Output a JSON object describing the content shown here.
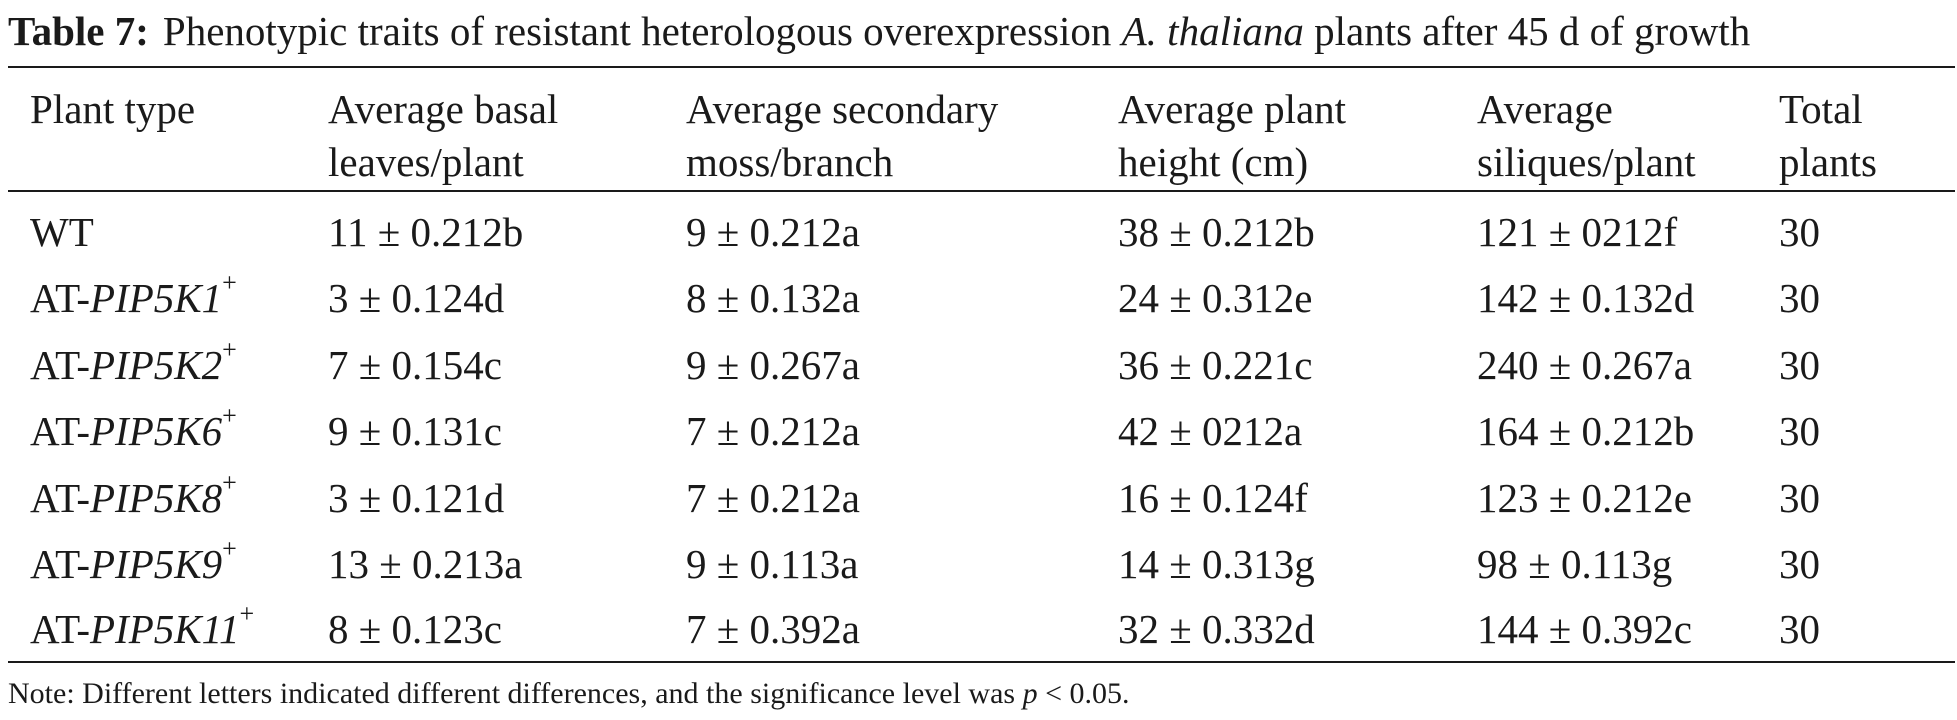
{
  "caption": {
    "label": "Table 7:",
    "text_before": "Phenotypic traits of resistant heterologous overexpression",
    "species": "A. thaliana",
    "text_after": "plants after 45 d of growth"
  },
  "headers": [
    [
      "Plant type"
    ],
    [
      "Average basal",
      "leaves/plant"
    ],
    [
      "Average secondary",
      "moss/branch"
    ],
    [
      "Average plant",
      "height (cm)"
    ],
    [
      "Average",
      "siliques/plant"
    ],
    [
      "Total",
      "plants"
    ]
  ],
  "rows": [
    {
      "prefix": "WT",
      "gene": "",
      "sup": "",
      "basal": "11 ± 0.212b",
      "secondary": "9 ± 0.212a",
      "height": "38 ± 0.212b",
      "siliques": "121 ± 0212f",
      "total": "30"
    },
    {
      "prefix": "AT-",
      "gene": "PIP5K1",
      "sup": "+",
      "basal": "3 ± 0.124d",
      "secondary": "8 ± 0.132a",
      "height": "24 ± 0.312e",
      "siliques": "142 ± 0.132d",
      "total": "30"
    },
    {
      "prefix": "AT-",
      "gene": "PIP5K2",
      "sup": "+",
      "basal": "7 ± 0.154c",
      "secondary": "9 ± 0.267a",
      "height": "36 ± 0.221c",
      "siliques": "240 ± 0.267a",
      "total": "30"
    },
    {
      "prefix": "AT-",
      "gene": "PIP5K6",
      "sup": "+",
      "basal": "9 ± 0.131c",
      "secondary": "7 ± 0.212a",
      "height": "42 ± 0212a",
      "siliques": "164 ± 0.212b",
      "total": "30"
    },
    {
      "prefix": "AT-",
      "gene": "PIP5K8",
      "sup": "+",
      "basal": "3 ± 0.121d",
      "secondary": "7 ± 0.212a",
      "height": "16 ± 0.124f",
      "siliques": "123 ± 0.212e",
      "total": "30"
    },
    {
      "prefix": "AT-",
      "gene": "PIP5K9",
      "sup": "+",
      "basal": "13 ± 0.213a",
      "secondary": "9 ± 0.113a",
      "height": "14 ± 0.313g",
      "siliques": "98 ± 0.113g",
      "total": "30"
    },
    {
      "prefix": "AT-",
      "gene": "PIP5K11",
      "sup": "+",
      "basal": "8 ± 0.123c",
      "secondary": "7 ± 0.392a",
      "height": "32 ± 0.332d",
      "siliques": "144 ± 0.392c",
      "total": "30"
    }
  ],
  "note": {
    "text": "Note: Different letters indicated different differences, and the significance level was",
    "p_symbol": "p",
    "threshold": "< 0.05."
  }
}
